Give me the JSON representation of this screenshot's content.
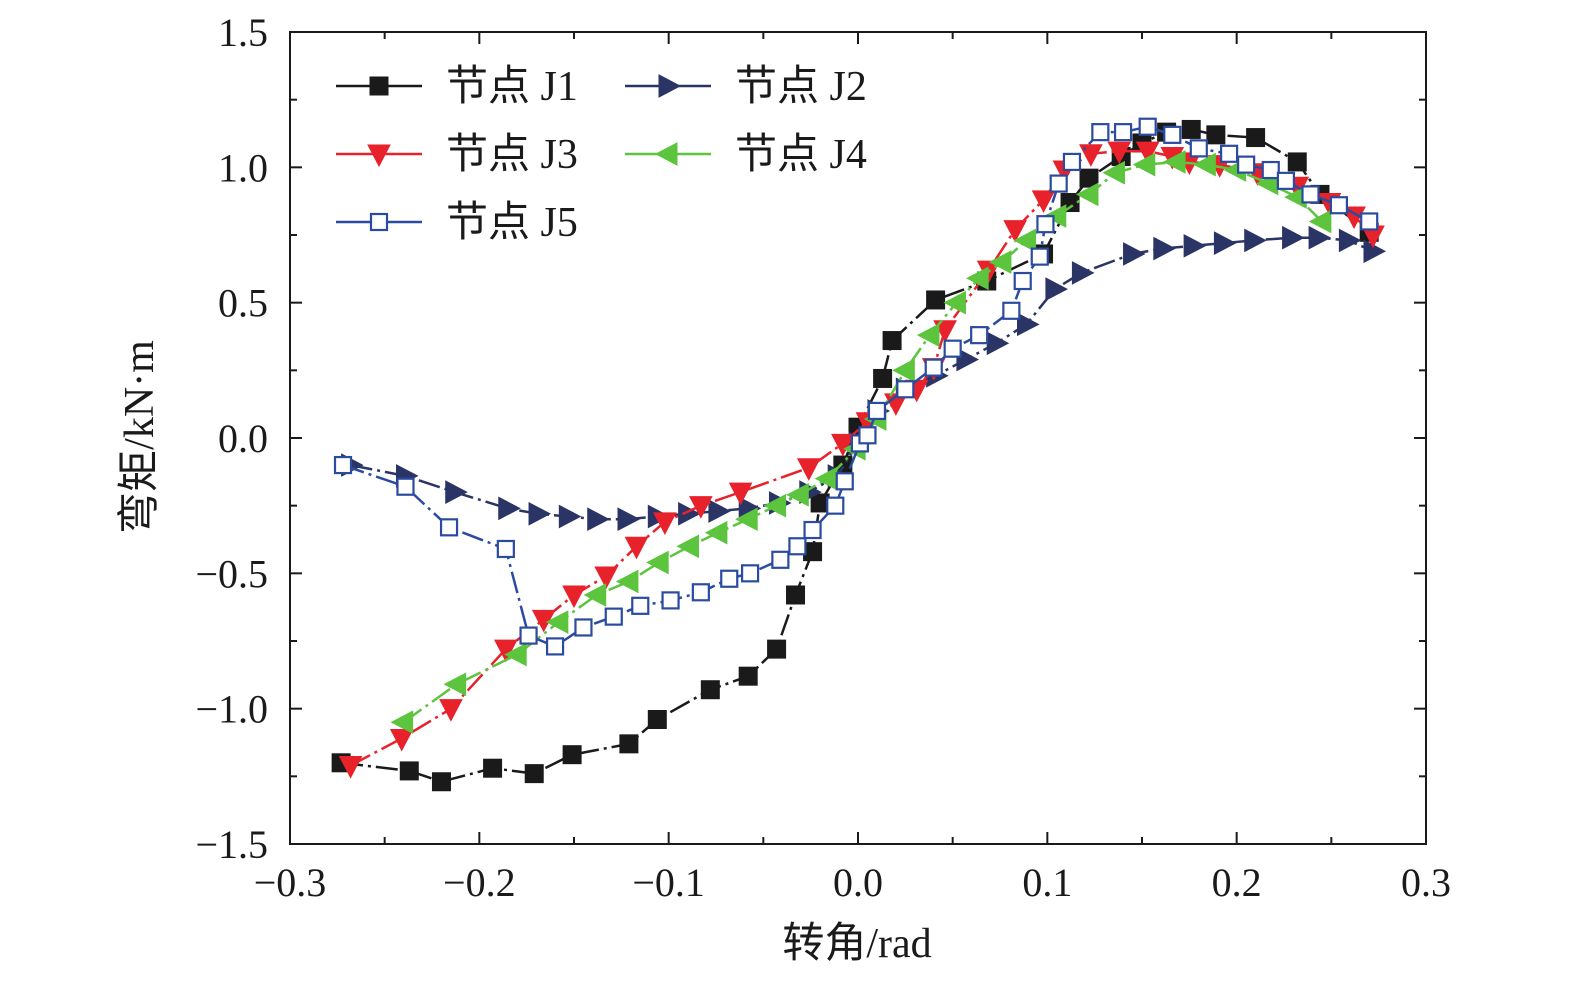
{
  "chart_data": {
    "type": "line",
    "title": "",
    "xlabel": "转角/rad",
    "ylabel": "弯矩/kN·m",
    "xlim": [
      -0.3,
      0.3
    ],
    "ylim": [
      -1.5,
      1.5
    ],
    "x_ticks": [
      -0.3,
      -0.2,
      -0.1,
      0.0,
      0.1,
      0.2,
      0.3
    ],
    "y_ticks": [
      -1.5,
      -1.0,
      -0.5,
      0.0,
      0.5,
      1.0,
      1.5
    ],
    "x_tick_labels": [
      "−0.3",
      "−0.2",
      "−0.1",
      "0.0",
      "0.1",
      "0.2",
      "0.3"
    ],
    "y_tick_labels": [
      "−1.5",
      "−1.0",
      "−0.5",
      "0.0",
      "0.5",
      "1.0",
      "1.5"
    ],
    "grid": false,
    "legend_position": "top-left",
    "series": [
      {
        "name": "节点 J1",
        "color": "#1a1a1a",
        "marker": "square-filled",
        "points": [
          [
            -0.273,
            -1.2
          ],
          [
            -0.237,
            -1.23
          ],
          [
            -0.22,
            -1.27
          ],
          [
            -0.193,
            -1.22
          ],
          [
            -0.171,
            -1.24
          ],
          [
            -0.151,
            -1.17
          ],
          [
            -0.121,
            -1.13
          ],
          [
            -0.106,
            -1.04
          ],
          [
            -0.078,
            -0.93
          ],
          [
            -0.058,
            -0.88
          ],
          [
            -0.043,
            -0.78
          ],
          [
            -0.033,
            -0.58
          ],
          [
            -0.024,
            -0.42
          ],
          [
            -0.02,
            -0.24
          ],
          [
            -0.008,
            -0.1
          ],
          [
            0.0,
            0.04
          ],
          [
            0.013,
            0.22
          ],
          [
            0.018,
            0.36
          ],
          [
            0.041,
            0.51
          ],
          [
            0.068,
            0.58
          ],
          [
            0.098,
            0.68
          ],
          [
            0.112,
            0.87
          ],
          [
            0.122,
            0.96
          ],
          [
            0.139,
            1.04
          ],
          [
            0.15,
            1.09
          ],
          [
            0.163,
            1.13
          ],
          [
            0.176,
            1.14
          ],
          [
            0.189,
            1.12
          ],
          [
            0.21,
            1.11
          ],
          [
            0.232,
            1.02
          ],
          [
            0.244,
            0.9
          ],
          [
            0.27,
            0.76
          ]
        ]
      },
      {
        "name": "节点 J2",
        "color": "#2a3566",
        "marker": "triangle-right",
        "points": [
          [
            -0.268,
            -0.1
          ],
          [
            -0.239,
            -0.14
          ],
          [
            -0.213,
            -0.2
          ],
          [
            -0.185,
            -0.26
          ],
          [
            -0.169,
            -0.28
          ],
          [
            -0.153,
            -0.29
          ],
          [
            -0.138,
            -0.3
          ],
          [
            -0.122,
            -0.3
          ],
          [
            -0.106,
            -0.29
          ],
          [
            -0.09,
            -0.28
          ],
          [
            -0.074,
            -0.27
          ],
          [
            -0.058,
            -0.26
          ],
          [
            -0.042,
            -0.24
          ],
          [
            -0.026,
            -0.2
          ],
          [
            -0.011,
            -0.14
          ],
          [
            0.0,
            -0.02
          ],
          [
            0.01,
            0.1
          ],
          [
            0.025,
            0.18
          ],
          [
            0.041,
            0.23
          ],
          [
            0.057,
            0.29
          ],
          [
            0.073,
            0.35
          ],
          [
            0.089,
            0.42
          ],
          [
            0.104,
            0.55
          ],
          [
            0.118,
            0.61
          ],
          [
            0.145,
            0.68
          ],
          [
            0.161,
            0.7
          ],
          [
            0.177,
            0.71
          ],
          [
            0.193,
            0.72
          ],
          [
            0.209,
            0.73
          ],
          [
            0.229,
            0.74
          ],
          [
            0.243,
            0.74
          ],
          [
            0.259,
            0.73
          ],
          [
            0.272,
            0.69
          ]
        ]
      },
      {
        "name": "节点 J3",
        "color": "#e8222a",
        "marker": "triangle-down",
        "points": [
          [
            -0.268,
            -1.21
          ],
          [
            -0.241,
            -1.11
          ],
          [
            -0.215,
            -1.0
          ],
          [
            -0.186,
            -0.78
          ],
          [
            -0.166,
            -0.67
          ],
          [
            -0.15,
            -0.58
          ],
          [
            -0.133,
            -0.51
          ],
          [
            -0.117,
            -0.4
          ],
          [
            -0.102,
            -0.31
          ],
          [
            -0.083,
            -0.25
          ],
          [
            -0.062,
            -0.2
          ],
          [
            -0.026,
            -0.11
          ],
          [
            -0.008,
            -0.02
          ],
          [
            0.005,
            0.06
          ],
          [
            0.02,
            0.13
          ],
          [
            0.031,
            0.18
          ],
          [
            0.04,
            0.26
          ],
          [
            0.046,
            0.4
          ],
          [
            0.069,
            0.62
          ],
          [
            0.083,
            0.77
          ],
          [
            0.098,
            0.88
          ],
          [
            0.109,
            0.99
          ],
          [
            0.123,
            1.05
          ],
          [
            0.138,
            1.06
          ],
          [
            0.153,
            1.06
          ],
          [
            0.166,
            1.04
          ],
          [
            0.175,
            1.02
          ],
          [
            0.191,
            1.01
          ],
          [
            0.211,
            0.98
          ],
          [
            0.232,
            0.93
          ],
          [
            0.249,
            0.87
          ],
          [
            0.262,
            0.82
          ],
          [
            0.272,
            0.75
          ]
        ]
      },
      {
        "name": "节点 J4",
        "color": "#5cc43d",
        "marker": "triangle-left",
        "points": [
          [
            -0.24,
            -1.05
          ],
          [
            -0.212,
            -0.91
          ],
          [
            -0.18,
            -0.8
          ],
          [
            -0.158,
            -0.68
          ],
          [
            -0.138,
            -0.58
          ],
          [
            -0.121,
            -0.53
          ],
          [
            -0.105,
            -0.46
          ],
          [
            -0.089,
            -0.4
          ],
          [
            -0.074,
            -0.35
          ],
          [
            -0.058,
            -0.3
          ],
          [
            -0.043,
            -0.25
          ],
          [
            -0.031,
            -0.21
          ],
          [
            -0.016,
            -0.15
          ],
          [
            -0.001,
            -0.04
          ],
          [
            0.01,
            0.07
          ],
          [
            0.025,
            0.25
          ],
          [
            0.038,
            0.38
          ],
          [
            0.052,
            0.5
          ],
          [
            0.064,
            0.59
          ],
          [
            0.076,
            0.65
          ],
          [
            0.089,
            0.73
          ],
          [
            0.105,
            0.82
          ],
          [
            0.122,
            0.9
          ],
          [
            0.136,
            0.98
          ],
          [
            0.152,
            1.01
          ],
          [
            0.168,
            1.02
          ],
          [
            0.184,
            1.01
          ],
          [
            0.2,
            0.99
          ],
          [
            0.217,
            0.94
          ],
          [
            0.232,
            0.89
          ],
          [
            0.245,
            0.8
          ]
        ]
      },
      {
        "name": "节点 J5",
        "color": "#2b4ba0",
        "marker": "square-open",
        "points": [
          [
            -0.272,
            -0.1
          ],
          [
            -0.239,
            -0.18
          ],
          [
            -0.216,
            -0.33
          ],
          [
            -0.186,
            -0.41
          ],
          [
            -0.174,
            -0.73
          ],
          [
            -0.16,
            -0.77
          ],
          [
            -0.145,
            -0.7
          ],
          [
            -0.129,
            -0.66
          ],
          [
            -0.115,
            -0.62
          ],
          [
            -0.099,
            -0.6
          ],
          [
            -0.083,
            -0.57
          ],
          [
            -0.068,
            -0.52
          ],
          [
            -0.057,
            -0.5
          ],
          [
            -0.041,
            -0.45
          ],
          [
            -0.032,
            -0.4
          ],
          [
            -0.024,
            -0.34
          ],
          [
            -0.012,
            -0.25
          ],
          [
            -0.007,
            -0.16
          ],
          [
            0.001,
            -0.02
          ],
          [
            0.005,
            0.01
          ],
          [
            0.01,
            0.1
          ],
          [
            0.025,
            0.18
          ],
          [
            0.04,
            0.26
          ],
          [
            0.05,
            0.33
          ],
          [
            0.064,
            0.38
          ],
          [
            0.081,
            0.47
          ],
          [
            0.087,
            0.58
          ],
          [
            0.096,
            0.67
          ],
          [
            0.099,
            0.79
          ],
          [
            0.106,
            0.94
          ],
          [
            0.113,
            1.02
          ],
          [
            0.128,
            1.13
          ],
          [
            0.14,
            1.13
          ],
          [
            0.153,
            1.15
          ],
          [
            0.166,
            1.12
          ],
          [
            0.18,
            1.07
          ],
          [
            0.196,
            1.05
          ],
          [
            0.205,
            1.01
          ],
          [
            0.218,
            0.99
          ],
          [
            0.226,
            0.95
          ],
          [
            0.239,
            0.9
          ],
          [
            0.254,
            0.86
          ],
          [
            0.27,
            0.8
          ]
        ]
      }
    ]
  }
}
